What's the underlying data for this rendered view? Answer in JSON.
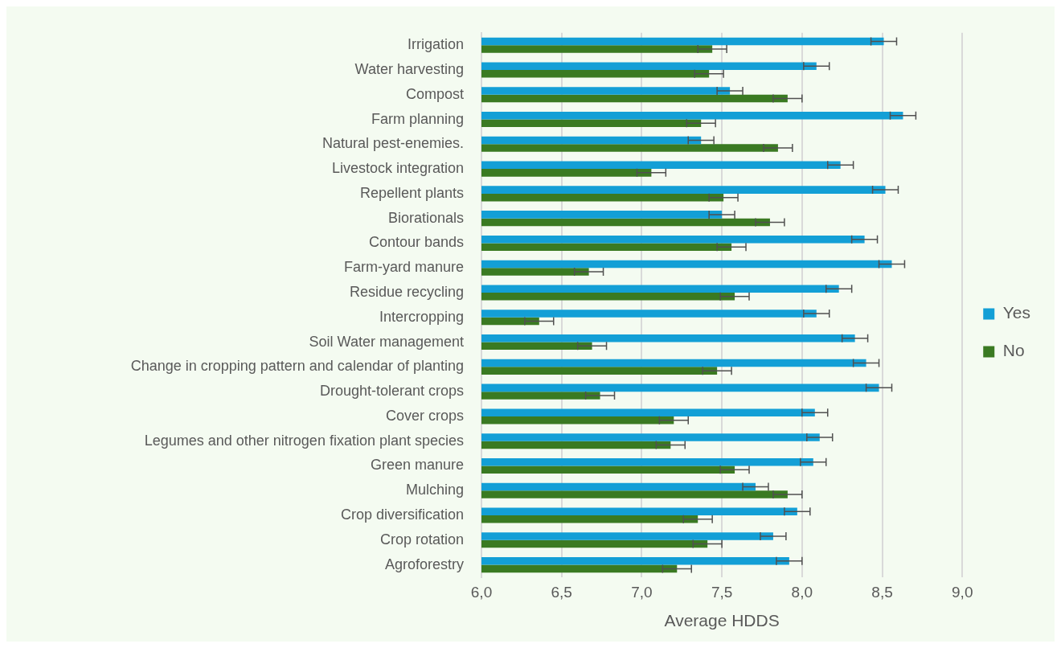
{
  "chart_data": {
    "type": "bar",
    "orientation": "horizontal",
    "xlabel": "Average HDDS",
    "categories": [
      "Irrigation",
      "Water harvesting",
      "Compost",
      "Farm planning",
      "Natural pest-enemies.",
      "Livestock integration",
      "Repellent plants",
      "Biorationals",
      "Contour bands",
      "Farm-yard manure",
      "Residue recycling",
      "Intercropping",
      "Soil Water management",
      "Change in cropping pattern and calendar of planting",
      "Drought-tolerant crops",
      "Cover crops",
      "Legumes and other nitrogen fixation plant species",
      "Green manure",
      "Mulching",
      "Crop diversification",
      "Crop rotation",
      "Agroforestry"
    ],
    "series": [
      {
        "name": "Yes",
        "color": "#139fd6",
        "values": [
          8.51,
          8.09,
          7.55,
          8.63,
          7.37,
          8.24,
          8.52,
          7.5,
          8.39,
          8.56,
          8.23,
          8.09,
          8.33,
          8.4,
          8.48,
          8.08,
          8.11,
          8.07,
          7.71,
          7.97,
          7.82,
          7.92
        ],
        "errors": [
          0.08,
          0.08,
          0.08,
          0.08,
          0.08,
          0.08,
          0.08,
          0.08,
          0.08,
          0.08,
          0.08,
          0.08,
          0.08,
          0.08,
          0.08,
          0.08,
          0.08,
          0.08,
          0.08,
          0.08,
          0.08,
          0.08
        ]
      },
      {
        "name": "No",
        "color": "#3a7a22",
        "values": [
          7.44,
          7.42,
          7.91,
          7.37,
          7.85,
          7.06,
          7.51,
          7.8,
          7.56,
          6.67,
          7.58,
          6.36,
          6.69,
          7.47,
          6.74,
          7.2,
          7.18,
          7.58,
          7.91,
          7.35,
          7.41,
          7.22
        ],
        "errors": [
          0.09,
          0.09,
          0.09,
          0.09,
          0.09,
          0.09,
          0.09,
          0.09,
          0.09,
          0.09,
          0.09,
          0.09,
          0.09,
          0.09,
          0.09,
          0.09,
          0.09,
          0.09,
          0.09,
          0.09,
          0.09,
          0.09
        ]
      }
    ],
    "xlim": [
      6,
      9
    ],
    "xticks": [
      {
        "value": 6,
        "label": "6,0"
      },
      {
        "value": 6.5,
        "label": "6,5"
      },
      {
        "value": 7,
        "label": "7,0"
      },
      {
        "value": 7.5,
        "label": "7,5"
      },
      {
        "value": 8,
        "label": "8,0"
      },
      {
        "value": 8.5,
        "label": "8,5"
      },
      {
        "value": 9,
        "label": "9,0"
      }
    ],
    "grid": "x",
    "legend": "right"
  }
}
